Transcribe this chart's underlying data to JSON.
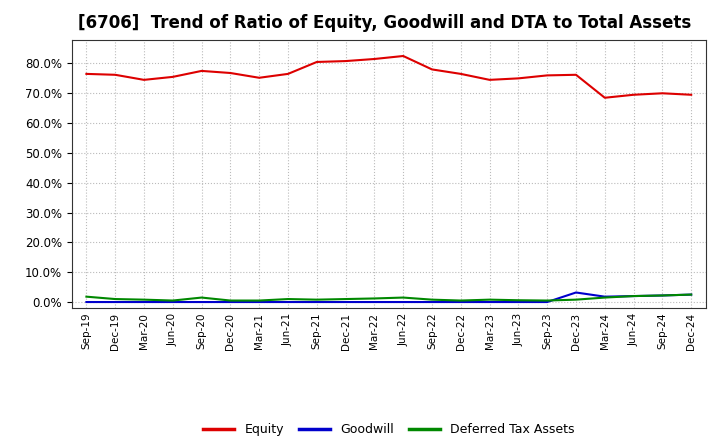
{
  "title": "[6706]  Trend of Ratio of Equity, Goodwill and DTA to Total Assets",
  "x_labels": [
    "Sep-19",
    "Dec-19",
    "Mar-20",
    "Jun-20",
    "Sep-20",
    "Dec-20",
    "Mar-21",
    "Jun-21",
    "Sep-21",
    "Dec-21",
    "Mar-22",
    "Jun-22",
    "Sep-22",
    "Dec-22",
    "Mar-23",
    "Jun-23",
    "Sep-23",
    "Dec-23",
    "Mar-24",
    "Jun-24",
    "Sep-24",
    "Dec-24"
  ],
  "equity": [
    76.5,
    76.2,
    74.5,
    75.5,
    77.5,
    76.8,
    75.2,
    76.5,
    80.5,
    80.8,
    81.5,
    82.5,
    78.0,
    76.5,
    74.5,
    75.0,
    76.0,
    76.2,
    68.5,
    69.5,
    70.0,
    69.5
  ],
  "goodwill": [
    0.0,
    0.0,
    0.0,
    0.0,
    0.0,
    0.0,
    0.0,
    0.0,
    0.0,
    0.0,
    0.0,
    0.0,
    0.0,
    0.0,
    0.0,
    0.0,
    0.0,
    3.2,
    1.8,
    2.0,
    2.2,
    2.5
  ],
  "dta": [
    1.8,
    1.0,
    0.8,
    0.5,
    1.5,
    0.5,
    0.5,
    1.0,
    0.8,
    1.0,
    1.2,
    1.5,
    0.8,
    0.5,
    0.8,
    0.6,
    0.5,
    0.8,
    1.5,
    2.0,
    2.2,
    2.5
  ],
  "equity_color": "#dd0000",
  "goodwill_color": "#0000cc",
  "dta_color": "#008800",
  "background_color": "#ffffff",
  "grid_color": "#bbbbbb",
  "ylim": [
    -2.0,
    88.0
  ],
  "yticks": [
    0.0,
    10.0,
    20.0,
    30.0,
    40.0,
    50.0,
    60.0,
    70.0,
    80.0
  ],
  "title_fontsize": 12,
  "legend_labels": [
    "Equity",
    "Goodwill",
    "Deferred Tax Assets"
  ]
}
